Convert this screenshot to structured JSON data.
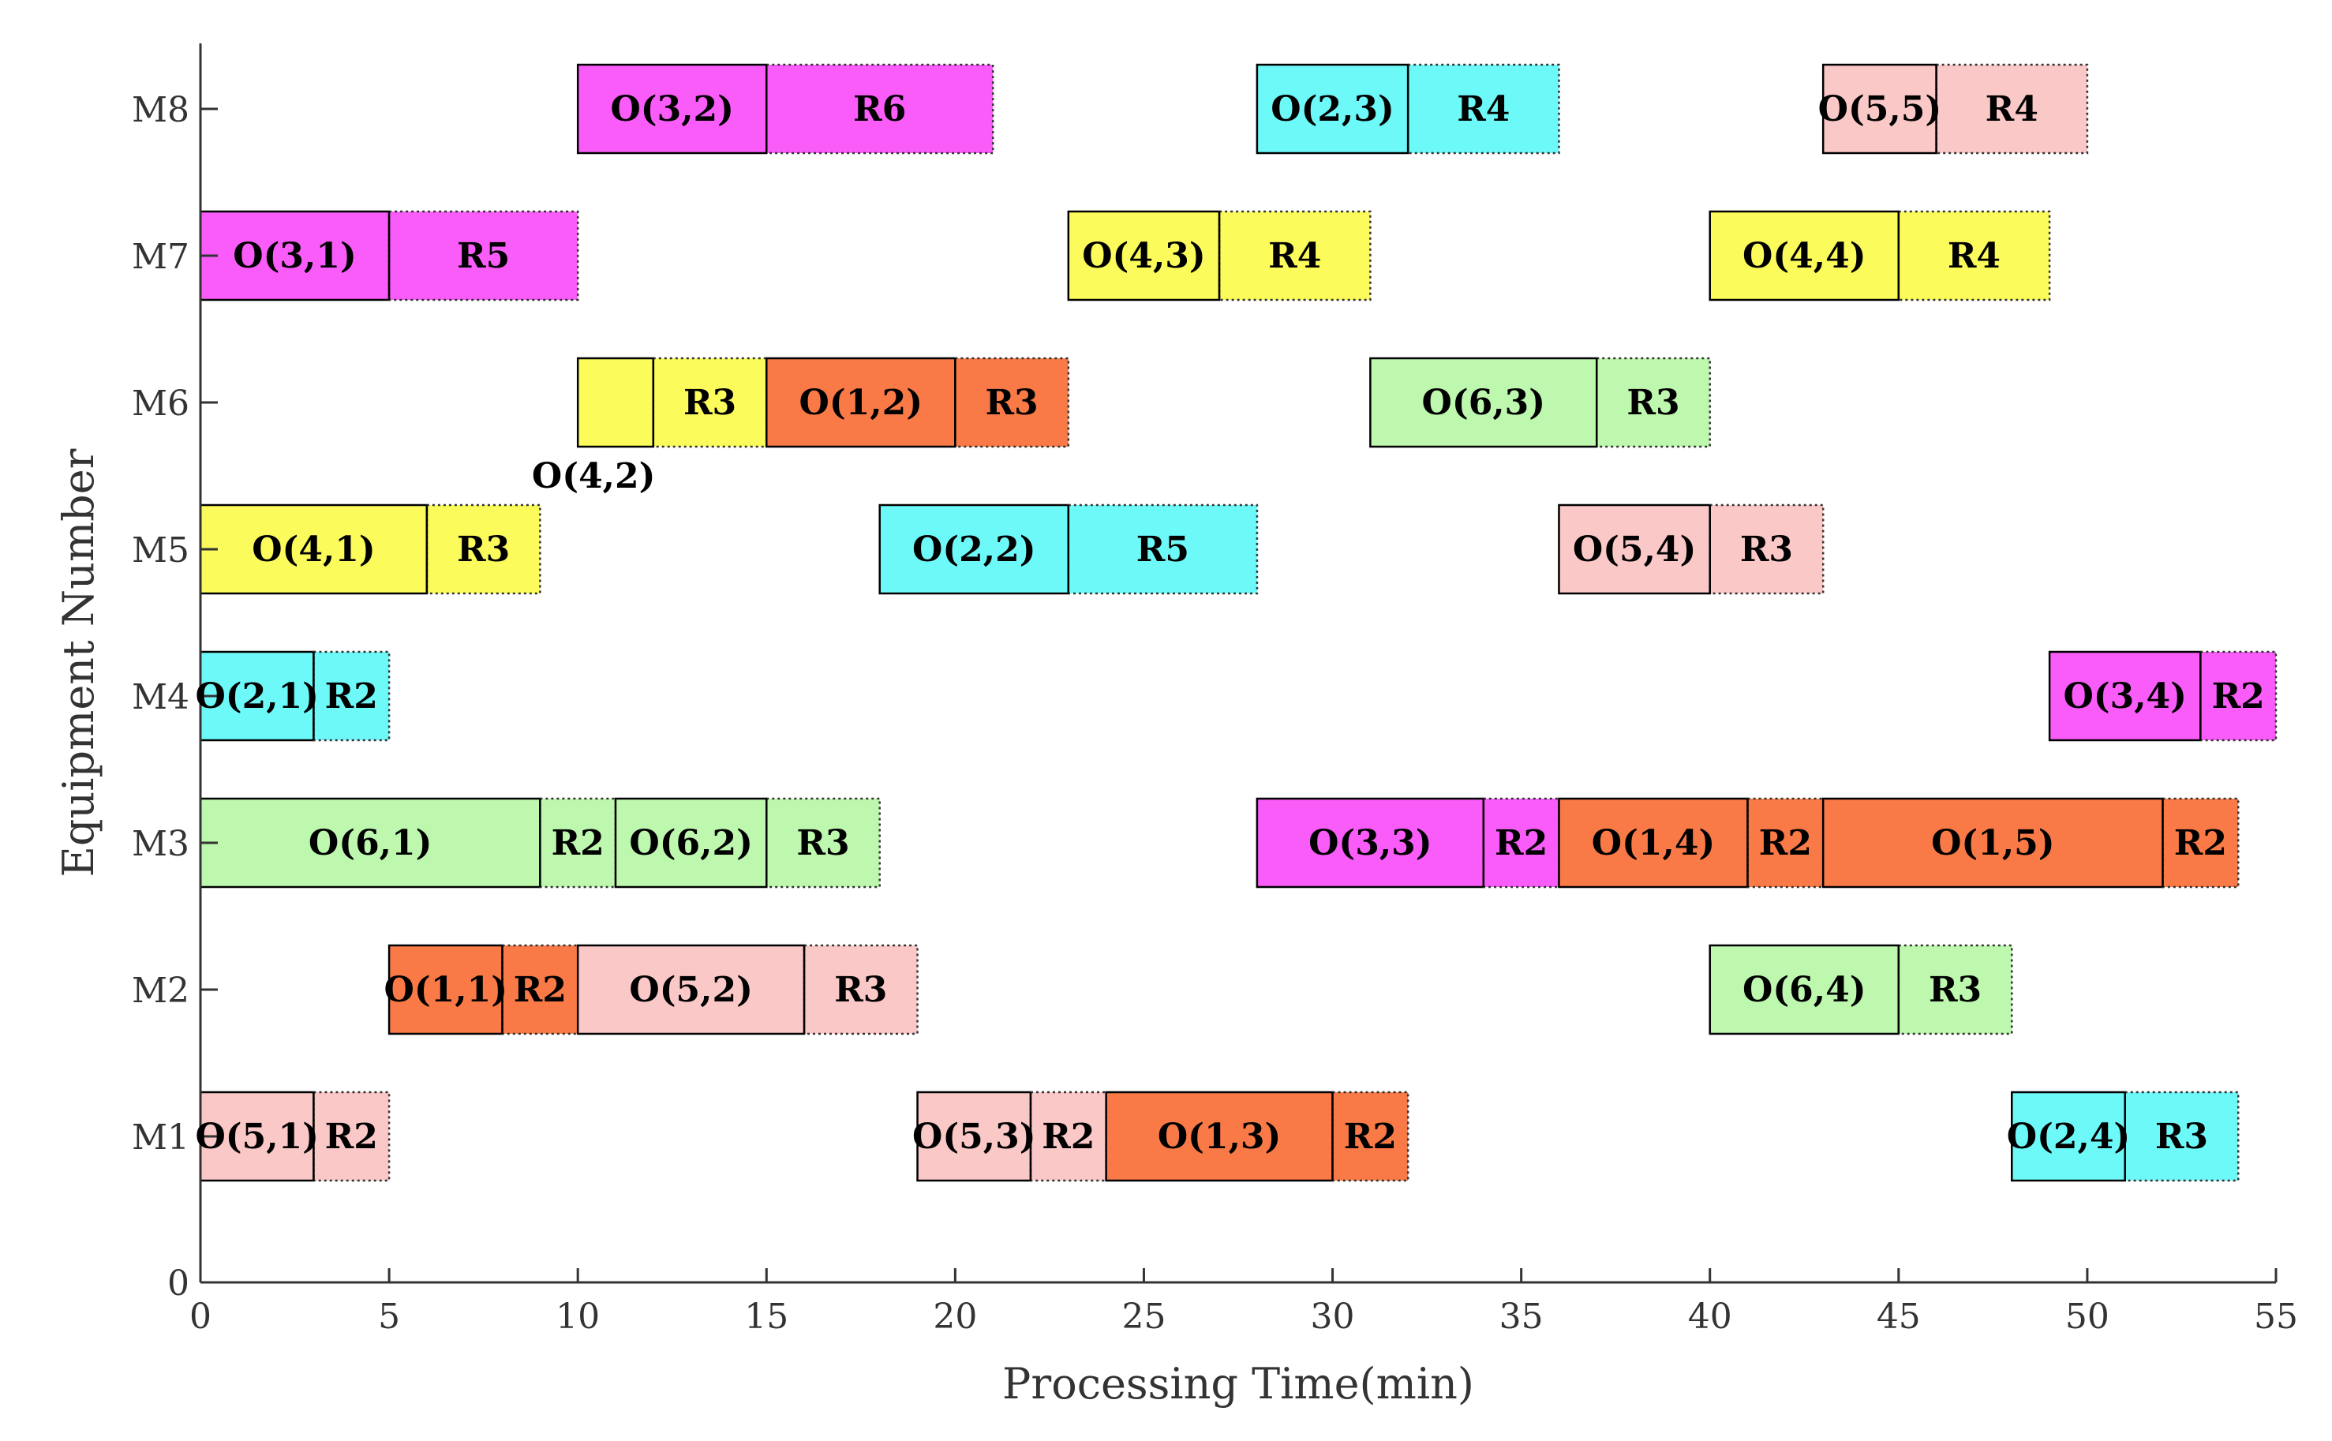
{
  "chart_data": {
    "type": "gantt",
    "xlabel": "Processing Time(min)",
    "ylabel": "Equipment Number",
    "xlim": [
      0,
      55
    ],
    "x_ticks": [
      "0",
      "5",
      "10",
      "15",
      "20",
      "25",
      "30",
      "35",
      "40",
      "45",
      "50",
      "55"
    ],
    "y_zero_label": "0",
    "machines": [
      "M1",
      "M2",
      "M3",
      "M4",
      "M5",
      "M6",
      "M7",
      "M8"
    ],
    "job_colors": {
      "1": "#F97A46",
      "2": "#6EF9F9",
      "3": "#F95CF9",
      "4": "#FBFB5B",
      "5": "#FBC8C8",
      "6": "#BDF8AE"
    },
    "operations": [
      {
        "machine": "M1",
        "job": 5,
        "label": "O(5,1)",
        "start": 0,
        "end": 3,
        "rest_label": "R2",
        "rest_end": 5
      },
      {
        "machine": "M1",
        "job": 5,
        "label": "O(5,3)",
        "start": 19,
        "end": 22,
        "rest_label": "R2",
        "rest_end": 24
      },
      {
        "machine": "M1",
        "job": 1,
        "label": "O(1,3)",
        "start": 24,
        "end": 30,
        "rest_label": "R2",
        "rest_end": 32
      },
      {
        "machine": "M1",
        "job": 2,
        "label": "O(2,4)",
        "start": 48,
        "end": 51,
        "rest_label": "R3",
        "rest_end": 54
      },
      {
        "machine": "M2",
        "job": 1,
        "label": "O(1,1)",
        "start": 5,
        "end": 8,
        "rest_label": "R2",
        "rest_end": 10
      },
      {
        "machine": "M2",
        "job": 5,
        "label": "O(5,2)",
        "start": 10,
        "end": 16,
        "rest_label": "R3",
        "rest_end": 19
      },
      {
        "machine": "M2",
        "job": 6,
        "label": "O(6,4)",
        "start": 40,
        "end": 45,
        "rest_label": "R3",
        "rest_end": 48
      },
      {
        "machine": "M3",
        "job": 6,
        "label": "O(6,1)",
        "start": 0,
        "end": 9,
        "rest_label": "R2",
        "rest_end": 11
      },
      {
        "machine": "M3",
        "job": 6,
        "label": "O(6,2)",
        "start": 11,
        "end": 15,
        "rest_label": "R3",
        "rest_end": 18
      },
      {
        "machine": "M3",
        "job": 3,
        "label": "O(3,3)",
        "start": 28,
        "end": 34,
        "rest_label": "R2",
        "rest_end": 36
      },
      {
        "machine": "M3",
        "job": 1,
        "label": "O(1,4)",
        "start": 36,
        "end": 41,
        "rest_label": "R2",
        "rest_end": 43
      },
      {
        "machine": "M3",
        "job": 1,
        "label": "O(1,5)",
        "start": 43,
        "end": 52,
        "rest_label": "R2",
        "rest_end": 54
      },
      {
        "machine": "M4",
        "job": 2,
        "label": "O(2,1)",
        "start": 0,
        "end": 3,
        "rest_label": "R2",
        "rest_end": 5
      },
      {
        "machine": "M4",
        "job": 3,
        "label": "O(3,4)",
        "start": 49,
        "end": 53,
        "rest_label": "R2",
        "rest_end": 55
      },
      {
        "machine": "M5",
        "job": 4,
        "label": "O(4,1)",
        "start": 0,
        "end": 6,
        "rest_label": "R3",
        "rest_end": 9
      },
      {
        "machine": "M5",
        "job": 2,
        "label": "O(2,2)",
        "start": 18,
        "end": 23,
        "rest_label": "R5",
        "rest_end": 28
      },
      {
        "machine": "M5",
        "job": 5,
        "label": "O(5,4)",
        "start": 36,
        "end": 40,
        "rest_label": "R3",
        "rest_end": 43
      },
      {
        "machine": "M6",
        "job": 4,
        "label": "O(4,2)",
        "start": 10,
        "end": 12,
        "rest_label": "R3",
        "rest_end": 15
      },
      {
        "machine": "M6",
        "job": 1,
        "label": "O(1,2)",
        "start": 15,
        "end": 20,
        "rest_label": "R3",
        "rest_end": 23
      },
      {
        "machine": "M6",
        "job": 6,
        "label": "O(6,3)",
        "start": 31,
        "end": 37,
        "rest_label": "R3",
        "rest_end": 40
      },
      {
        "machine": "M7",
        "job": 3,
        "label": "O(3,1)",
        "start": 0,
        "end": 5,
        "rest_label": "R5",
        "rest_end": 10
      },
      {
        "machine": "M7",
        "job": 4,
        "label": "O(4,3)",
        "start": 23,
        "end": 27,
        "rest_label": "R4",
        "rest_end": 31
      },
      {
        "machine": "M7",
        "job": 4,
        "label": "O(4,4)",
        "start": 40,
        "end": 45,
        "rest_label": "R4",
        "rest_end": 49
      },
      {
        "machine": "M8",
        "job": 3,
        "label": "O(3,2)",
        "start": 10,
        "end": 15,
        "rest_label": "R6",
        "rest_end": 21
      },
      {
        "machine": "M8",
        "job": 2,
        "label": "O(2,3)",
        "start": 28,
        "end": 32,
        "rest_label": "R4",
        "rest_end": 36
      },
      {
        "machine": "M8",
        "job": 5,
        "label": "O(5,5)",
        "start": 43,
        "end": 46,
        "rest_label": "R4",
        "rest_end": 50
      }
    ]
  }
}
